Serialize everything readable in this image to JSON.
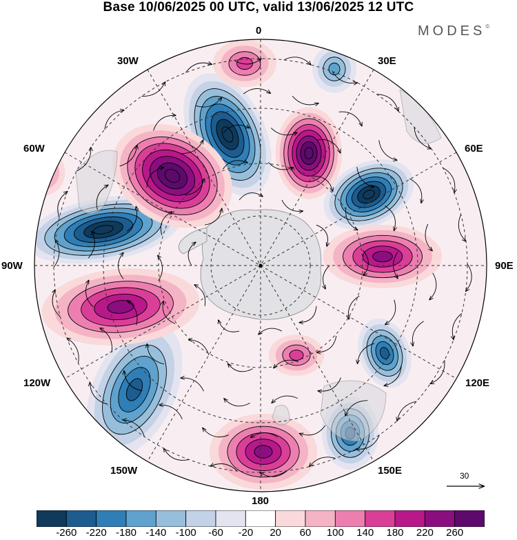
{
  "title": "Base 10/06/2025 00 UTC, valid 13/06/2025 12 UTC",
  "brand": "MODES",
  "brand_mark": "©",
  "longitude_labels": {
    "lon_0": "0",
    "lon_30e": "30E",
    "lon_60e": "60E",
    "lon_90e": "90E",
    "lon_120e": "120E",
    "lon_150e": "150E",
    "lon_180": "180",
    "lon_150w": "150W",
    "lon_120w": "120W",
    "lon_90w": "90W",
    "lon_60w": "60W",
    "lon_30w": "30W"
  },
  "reference_vector": "30",
  "colorbar": {
    "colors": [
      "#0f3a5c",
      "#1d5c8f",
      "#2f7eb6",
      "#5fa2cd",
      "#97bfdc",
      "#c3d2e6",
      "#e4e4f0",
      "#ffffff",
      "#fad9da",
      "#f5b3c6",
      "#ec7fb0",
      "#da3f98",
      "#b8188a",
      "#8b0e80",
      "#5d0a6c"
    ],
    "labels": [
      "-260",
      "-220",
      "-180",
      "-140",
      "-100",
      "-60",
      "-20",
      "20",
      "60",
      "100",
      "140",
      "180",
      "220",
      "260"
    ]
  },
  "anomaly_centers": [
    {
      "sign": "neg",
      "level": 3
    },
    {
      "sign": "neg",
      "level": 3
    },
    {
      "sign": "neg",
      "level": 3
    },
    {
      "sign": "neg",
      "level": 2
    },
    {
      "sign": "neg",
      "level": 2
    },
    {
      "sign": "neg",
      "level": 2
    },
    {
      "sign": "neg",
      "level": 1
    },
    {
      "sign": "pos",
      "level": 3
    },
    {
      "sign": "pos",
      "level": 3
    },
    {
      "sign": "pos",
      "level": 2
    },
    {
      "sign": "pos",
      "level": 2
    },
    {
      "sign": "pos",
      "level": 2
    },
    {
      "sign": "pos",
      "level": 1
    },
    {
      "sign": "pos",
      "level": 1
    },
    {
      "sign": "pos",
      "level": 1
    }
  ]
}
